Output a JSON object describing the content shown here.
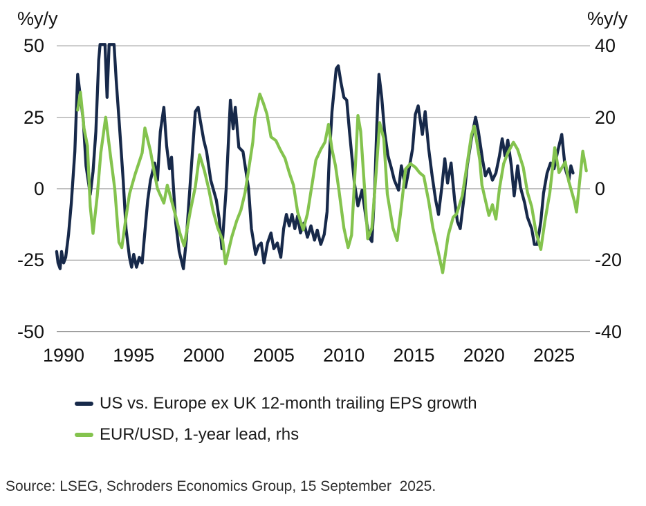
{
  "source": "Source: LSEG, Schroders Economics Group, 15 September  2025.",
  "chart_data": {
    "type": "line",
    "title": "",
    "grid": "horizontal",
    "grid_color": "#9b9b9b",
    "background": "#ffffff",
    "legend_position": "bottom-left",
    "left_axis": {
      "label": "%y/y",
      "ticks": [
        50,
        25,
        0,
        -25,
        -50
      ],
      "range": [
        -50,
        52
      ]
    },
    "right_axis": {
      "label": "%y/y",
      "ticks": [
        40,
        20,
        0,
        -20,
        -40
      ],
      "range": [
        -40,
        41.6
      ]
    },
    "x_axis": {
      "ticks": [
        1990,
        1995,
        2000,
        2005,
        2010,
        2015,
        2020,
        2025
      ],
      "range": [
        1989.5,
        2027.6
      ]
    },
    "series": [
      {
        "name": "US vs. Europe ex UK 12-month trailing EPS growth",
        "axis": "left",
        "color": "#17294a",
        "points": [
          [
            1989.5,
            -22
          ],
          [
            1989.6,
            -26
          ],
          [
            1989.75,
            -28
          ],
          [
            1989.85,
            -22
          ],
          [
            1990.0,
            -26
          ],
          [
            1990.15,
            -24
          ],
          [
            1990.35,
            -16
          ],
          [
            1990.55,
            -5
          ],
          [
            1990.8,
            13
          ],
          [
            1991.0,
            40
          ],
          [
            1991.2,
            32
          ],
          [
            1991.4,
            24
          ],
          [
            1991.6,
            8
          ],
          [
            1991.9,
            -2
          ],
          [
            1992.1,
            6
          ],
          [
            1992.3,
            20
          ],
          [
            1992.5,
            45
          ],
          [
            1992.6,
            50.5
          ],
          [
            1992.95,
            50.5
          ],
          [
            1993.1,
            32
          ],
          [
            1993.25,
            50.5
          ],
          [
            1993.6,
            50.5
          ],
          [
            1993.75,
            38
          ],
          [
            1994.0,
            21
          ],
          [
            1994.25,
            3
          ],
          [
            1994.45,
            -14
          ],
          [
            1994.7,
            -24
          ],
          [
            1994.85,
            -27.5
          ],
          [
            1995.0,
            -23
          ],
          [
            1995.2,
            -27.5
          ],
          [
            1995.4,
            -24
          ],
          [
            1995.6,
            -26
          ],
          [
            1995.8,
            -15
          ],
          [
            1996.0,
            -4
          ],
          [
            1996.2,
            3
          ],
          [
            1996.5,
            9
          ],
          [
            1996.7,
            3
          ],
          [
            1996.9,
            20
          ],
          [
            1997.15,
            28.5
          ],
          [
            1997.35,
            15
          ],
          [
            1997.55,
            7
          ],
          [
            1997.7,
            11
          ],
          [
            1998.0,
            -12
          ],
          [
            1998.25,
            -22
          ],
          [
            1998.55,
            -28
          ],
          [
            1998.75,
            -18
          ],
          [
            1998.95,
            -4
          ],
          [
            1999.15,
            10
          ],
          [
            1999.4,
            27
          ],
          [
            1999.6,
            28.5
          ],
          [
            1999.75,
            24
          ],
          [
            2000.0,
            17
          ],
          [
            2000.2,
            13
          ],
          [
            2000.5,
            3
          ],
          [
            2000.9,
            -4
          ],
          [
            2001.1,
            -10.5
          ],
          [
            2001.3,
            -21
          ],
          [
            2001.6,
            0
          ],
          [
            2001.9,
            31
          ],
          [
            2002.1,
            21
          ],
          [
            2002.25,
            28.5
          ],
          [
            2002.5,
            14.5
          ],
          [
            2002.8,
            13
          ],
          [
            2003.2,
            0
          ],
          [
            2003.4,
            -14
          ],
          [
            2003.7,
            -23
          ],
          [
            2003.9,
            -20
          ],
          [
            2004.1,
            -19
          ],
          [
            2004.3,
            -26
          ],
          [
            2004.55,
            -19
          ],
          [
            2004.8,
            -15.5
          ],
          [
            2005.0,
            -21
          ],
          [
            2005.25,
            -19
          ],
          [
            2005.5,
            -24
          ],
          [
            2005.7,
            -14
          ],
          [
            2005.9,
            -9
          ],
          [
            2006.1,
            -13
          ],
          [
            2006.3,
            -9
          ],
          [
            2006.5,
            -14
          ],
          [
            2006.7,
            -9.5
          ],
          [
            2006.9,
            -15.5
          ],
          [
            2007.15,
            -12
          ],
          [
            2007.4,
            -17
          ],
          [
            2007.65,
            -13
          ],
          [
            2007.9,
            -18
          ],
          [
            2008.1,
            -14.5
          ],
          [
            2008.35,
            -19.5
          ],
          [
            2008.6,
            -16
          ],
          [
            2008.8,
            -8
          ],
          [
            2008.95,
            10
          ],
          [
            2009.15,
            27
          ],
          [
            2009.45,
            42
          ],
          [
            2009.6,
            43
          ],
          [
            2009.8,
            37
          ],
          [
            2010.0,
            32
          ],
          [
            2010.2,
            31
          ],
          [
            2010.4,
            20
          ],
          [
            2010.75,
            2
          ],
          [
            2011.0,
            -6
          ],
          [
            2011.3,
            -0.5
          ],
          [
            2011.6,
            -11
          ],
          [
            2011.8,
            -17
          ],
          [
            2012.0,
            -18.5
          ],
          [
            2012.2,
            0
          ],
          [
            2012.35,
            22
          ],
          [
            2012.5,
            40
          ],
          [
            2012.7,
            32
          ],
          [
            2012.9,
            20
          ],
          [
            2013.15,
            11.5
          ],
          [
            2013.4,
            7
          ],
          [
            2013.6,
            3
          ],
          [
            2013.9,
            -0.5
          ],
          [
            2014.1,
            8
          ],
          [
            2014.4,
            0.5
          ],
          [
            2014.65,
            7
          ],
          [
            2014.9,
            14
          ],
          [
            2015.1,
            26
          ],
          [
            2015.3,
            29
          ],
          [
            2015.6,
            19
          ],
          [
            2015.8,
            27
          ],
          [
            2016.05,
            14
          ],
          [
            2016.3,
            4.5
          ],
          [
            2016.55,
            -4
          ],
          [
            2016.75,
            -9
          ],
          [
            2017.0,
            1
          ],
          [
            2017.2,
            10.5
          ],
          [
            2017.4,
            2
          ],
          [
            2017.65,
            9
          ],
          [
            2017.9,
            -4
          ],
          [
            2018.1,
            -11.5
          ],
          [
            2018.3,
            -14
          ],
          [
            2018.55,
            -4
          ],
          [
            2018.8,
            8
          ],
          [
            2019.1,
            17.5
          ],
          [
            2019.4,
            25
          ],
          [
            2019.6,
            20
          ],
          [
            2019.9,
            10
          ],
          [
            2020.1,
            4.5
          ],
          [
            2020.35,
            7
          ],
          [
            2020.6,
            3
          ],
          [
            2020.85,
            5.5
          ],
          [
            2021.1,
            11.5
          ],
          [
            2021.3,
            17.5
          ],
          [
            2021.5,
            11.5
          ],
          [
            2021.7,
            17
          ],
          [
            2021.95,
            8
          ],
          [
            2022.15,
            -2.5
          ],
          [
            2022.4,
            8
          ],
          [
            2022.6,
            0.5
          ],
          [
            2022.9,
            -5
          ],
          [
            2023.1,
            -10
          ],
          [
            2023.4,
            -14
          ],
          [
            2023.6,
            -19.5
          ],
          [
            2023.8,
            -19.5
          ],
          [
            2024.05,
            -11.5
          ],
          [
            2024.25,
            -1.5
          ],
          [
            2024.5,
            5.5
          ],
          [
            2024.75,
            9
          ],
          [
            2025.0,
            7
          ],
          [
            2025.25,
            13
          ],
          [
            2025.55,
            19
          ],
          [
            2025.8,
            7
          ],
          [
            2026.05,
            3
          ],
          [
            2026.2,
            8
          ],
          [
            2026.35,
            5.5
          ]
        ]
      },
      {
        "name": "EUR/USD, 1-year lead, rhs",
        "axis": "right",
        "color": "#84c34e",
        "points": [
          [
            1991.0,
            22
          ],
          [
            1991.2,
            27
          ],
          [
            1991.45,
            17
          ],
          [
            1991.7,
            12
          ],
          [
            1991.9,
            -5
          ],
          [
            1992.1,
            -12.5
          ],
          [
            1992.4,
            -2
          ],
          [
            1992.65,
            10
          ],
          [
            1993.0,
            20
          ],
          [
            1993.35,
            9
          ],
          [
            1993.65,
            0
          ],
          [
            1993.95,
            -15
          ],
          [
            1994.15,
            -16.5
          ],
          [
            1994.45,
            -8
          ],
          [
            1994.7,
            -1.5
          ],
          [
            1995.1,
            4
          ],
          [
            1995.6,
            10
          ],
          [
            1995.8,
            17
          ],
          [
            1996.2,
            10.5
          ],
          [
            1996.4,
            6
          ],
          [
            1996.7,
            0
          ],
          [
            1997.15,
            -4
          ],
          [
            1997.4,
            1
          ],
          [
            1997.95,
            -7
          ],
          [
            1998.3,
            -12.5
          ],
          [
            1998.6,
            -16
          ],
          [
            1999.05,
            -6
          ],
          [
            1999.4,
            0.5
          ],
          [
            1999.7,
            9.5
          ],
          [
            2000.05,
            5
          ],
          [
            2000.35,
            0
          ],
          [
            2000.65,
            -6
          ],
          [
            2001.0,
            -11
          ],
          [
            2001.35,
            -14.5
          ],
          [
            2001.55,
            -21
          ],
          [
            2002.0,
            -13.5
          ],
          [
            2002.35,
            -9
          ],
          [
            2002.65,
            -6
          ],
          [
            2002.95,
            -1
          ],
          [
            2003.25,
            6.5
          ],
          [
            2003.5,
            13
          ],
          [
            2003.65,
            20
          ],
          [
            2004.0,
            26.5
          ],
          [
            2004.25,
            24
          ],
          [
            2004.5,
            21
          ],
          [
            2004.8,
            14.5
          ],
          [
            2005.15,
            13.5
          ],
          [
            2005.45,
            11
          ],
          [
            2005.8,
            8.5
          ],
          [
            2006.1,
            4.5
          ],
          [
            2006.4,
            1
          ],
          [
            2006.7,
            -6.5
          ],
          [
            2007.1,
            -11.5
          ],
          [
            2007.4,
            -7
          ],
          [
            2007.7,
            0.5
          ],
          [
            2008.0,
            8
          ],
          [
            2008.35,
            11
          ],
          [
            2008.65,
            13
          ],
          [
            2008.9,
            18
          ],
          [
            2009.15,
            11
          ],
          [
            2009.4,
            6.5
          ],
          [
            2009.65,
            -0.5
          ],
          [
            2010.0,
            -11
          ],
          [
            2010.3,
            -16.5
          ],
          [
            2010.55,
            -13
          ],
          [
            2010.85,
            8.5
          ],
          [
            2011.0,
            20.5
          ],
          [
            2011.2,
            16
          ],
          [
            2011.5,
            -1.5
          ],
          [
            2011.7,
            -14
          ],
          [
            2012.0,
            -11
          ],
          [
            2012.3,
            4.5
          ],
          [
            2012.55,
            18.5
          ],
          [
            2012.85,
            14
          ],
          [
            2013.1,
            -1.5
          ],
          [
            2013.5,
            -11
          ],
          [
            2013.8,
            -14.5
          ],
          [
            2014.1,
            -5
          ],
          [
            2014.4,
            5.5
          ],
          [
            2014.75,
            7
          ],
          [
            2015.1,
            6
          ],
          [
            2015.4,
            4.5
          ],
          [
            2015.7,
            3.5
          ],
          [
            2016.05,
            -3.5
          ],
          [
            2016.35,
            -11
          ],
          [
            2016.7,
            -17
          ],
          [
            2017.05,
            -23.5
          ],
          [
            2017.45,
            -13
          ],
          [
            2017.8,
            -8
          ],
          [
            2018.05,
            -7
          ],
          [
            2018.45,
            -2
          ],
          [
            2018.7,
            4.5
          ],
          [
            2019.1,
            15
          ],
          [
            2019.3,
            17.5
          ],
          [
            2019.7,
            8
          ],
          [
            2019.85,
            1
          ],
          [
            2020.35,
            -7.5
          ],
          [
            2020.6,
            -4.5
          ],
          [
            2020.85,
            -8.5
          ],
          [
            2021.1,
            0
          ],
          [
            2021.4,
            7
          ],
          [
            2021.7,
            10
          ],
          [
            2022.1,
            13
          ],
          [
            2022.4,
            11
          ],
          [
            2022.8,
            6
          ],
          [
            2023.1,
            -1
          ],
          [
            2023.4,
            -5
          ],
          [
            2023.7,
            -12
          ],
          [
            2024.05,
            -17
          ],
          [
            2024.35,
            -9
          ],
          [
            2024.7,
            -1
          ],
          [
            2025.05,
            11.5
          ],
          [
            2025.35,
            4.5
          ],
          [
            2025.8,
            7.5
          ],
          [
            2026.05,
            2
          ],
          [
            2026.45,
            -3.5
          ],
          [
            2026.6,
            -6.5
          ],
          [
            2027.05,
            10.5
          ],
          [
            2027.3,
            5
          ]
        ]
      }
    ]
  }
}
